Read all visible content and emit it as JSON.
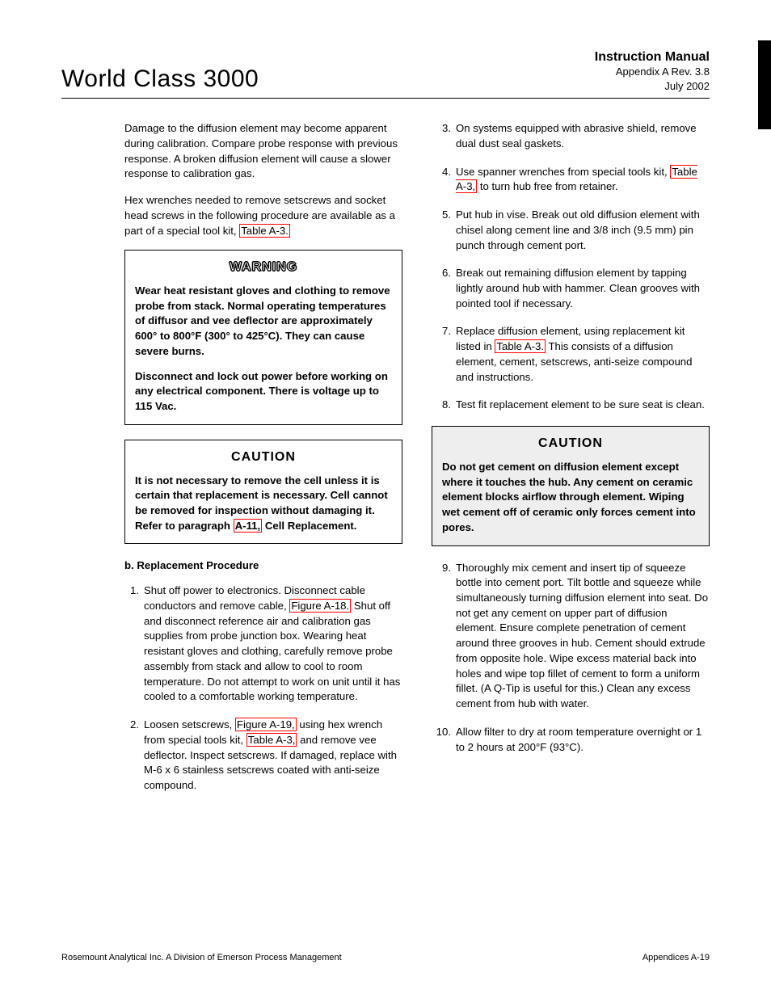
{
  "header": {
    "left": "World Class 3000",
    "right_title": "Instruction Manual",
    "right_sub1": "Appendix A  Rev. 3.8",
    "right_sub2": "July 2002"
  },
  "left_col": {
    "p1a": "Damage to the diffusion element may become apparent during calibration. Compare probe response with previous response. A broken diffusion element will cause a slower response to calibration gas.",
    "p2a": "Hex wrenches needed to remove setscrews and socket head screws in the following procedure are available as a part of a special tool kit, ",
    "p2ref": "Table A-3.",
    "warning_title": "WARNING",
    "warn_p1": "Wear heat resistant gloves and clothing to remove probe from stack. Normal operating temperatures of diffusor and vee deflector are approximately 600° to 800°F (300° to 425°C). They can cause severe burns.",
    "warn_p2": "Disconnect and lock out power before working on any electrical component. There is voltage up to 115 Vac.",
    "caution_title": "CAUTION",
    "caut_p1a": "It is not necessary to remove the cell unless it is certain that replacement is necessary. Cell cannot be removed for inspection without damaging it. Refer to paragraph ",
    "caut_ref": "A-11,",
    "caut_p1b": " Cell Replacement.",
    "sub_b": "b.   Replacement Procedure",
    "li1a": "Shut off power to electronics. Disconnect cable conductors and remove cable, ",
    "li1ref": "Figure A-18.",
    "li1b": " Shut off and disconnect reference air and calibration gas supplies from probe junction box. Wearing heat resistant gloves and clothing, carefully remove probe assembly from stack and allow to cool to room temperature. Do not attempt to work on unit until it has cooled to a comfortable working temperature.",
    "li2a": "Loosen setscrews, ",
    "li2ref1": "Figure A-19,",
    "li2b": " using hex wrench from special tools kit, ",
    "li2ref2": "Table A-3,",
    "li2c": " and remove vee deflector. Inspect setscrews. If damaged, replace with M-6 x 6 stainless setscrews coated with anti-seize compound."
  },
  "right_col": {
    "li3": "On systems equipped with abrasive shield, remove dual dust seal gaskets.",
    "li4a": "Use spanner wrenches from special tools kit, ",
    "li4ref": "Table A-3,",
    "li4b": " to turn hub free from retainer.",
    "li5": "Put hub in vise. Break out old diffusion element with chisel along cement line and 3/8 inch (9.5 mm) pin punch through cement port.",
    "li6": "Break out remaining diffusion element by tapping lightly around hub with hammer. Clean grooves with pointed tool if necessary.",
    "li7a": "Replace diffusion element, using replacement kit listed in ",
    "li7ref": "Table A-3.",
    "li7b": " This consists of a diffusion element, cement, setscrews, anti-seize compound and instructions.",
    "li8": "Test fit replacement element to be sure seat is clean.",
    "caution_title": "CAUTION",
    "caut2": "Do not get cement on diffusion element except where it touches the hub. Any cement on ceramic element blocks airflow through element. Wiping wet cement off of ceramic only forces cement into pores.",
    "li9": "Thoroughly mix cement and insert tip of squeeze bottle into cement port. Tilt bottle and squeeze while simultaneously turning diffusion element into seat. Do not get any cement on upper part of diffusion element. Ensure complete penetration of cement around three grooves in hub. Cement should extrude from opposite hole. Wipe excess material back into holes and wipe top fillet of cement to form a uniform fillet. (A Q-Tip is useful for this.) Clean any excess cement from hub with water.",
    "li10": "Allow filter to dry at room temperature overnight or 1 to 2 hours at 200°F (93°C)."
  },
  "footer": {
    "left": "Rosemount Analytical Inc.    A Division of Emerson Process Management",
    "right": "Appendices    A-19"
  }
}
